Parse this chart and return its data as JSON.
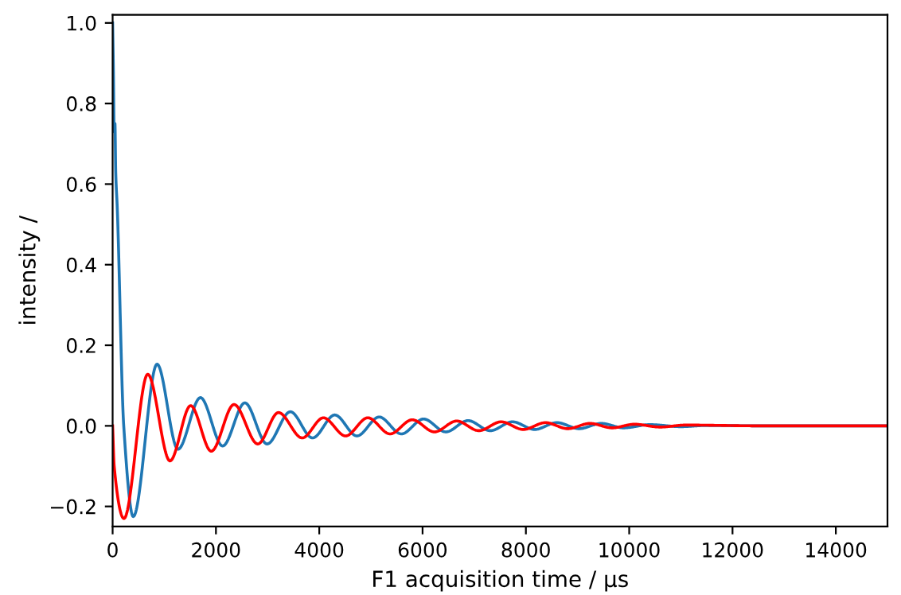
{
  "chart_data": {
    "type": "line",
    "xlabel": "F1 acquisition time / µs",
    "ylabel": "intensity /",
    "xlim": [
      0,
      15000
    ],
    "ylim": [
      -0.25,
      1.02
    ],
    "xticks": [
      0,
      2000,
      4000,
      6000,
      8000,
      10000,
      12000,
      14000
    ],
    "yticks": [
      {
        "value": -0.2,
        "label": "−0.2"
      },
      {
        "value": 0,
        "label": "0.0"
      },
      0.2,
      0.4,
      0.6,
      0.8,
      {
        "value": 1,
        "label": "1.0"
      }
    ],
    "grid": false,
    "legend": false,
    "series": [
      {
        "color": "#1f77b4",
        "x": [
          0,
          15,
          30,
          45,
          60,
          90,
          215,
          400,
          860,
          1265,
          1700,
          2130,
          2560,
          2990,
          3440,
          3870,
          4300,
          4730,
          5160,
          5590,
          6020,
          6450,
          6880,
          7310,
          7740,
          8170,
          8600,
          9030,
          9460,
          9890,
          10400,
          11000,
          11500,
          12500,
          15000
        ],
        "values": [
          1.0,
          0.88,
          0.73,
          0.75,
          0.63,
          0.54,
          0.0,
          -0.225,
          0.153,
          -0.058,
          0.07,
          -0.05,
          0.057,
          -0.045,
          0.035,
          -0.03,
          0.027,
          -0.025,
          0.022,
          -0.02,
          0.017,
          -0.015,
          0.013,
          -0.012,
          0.01,
          -0.009,
          0.008,
          -0.007,
          0.006,
          -0.005,
          0.003,
          -0.002,
          0.001,
          0.0,
          0.0
        ]
      },
      {
        "color": "#ff0000",
        "x": [
          0,
          30,
          220,
          680,
          1110,
          1510,
          1910,
          2350,
          2810,
          3210,
          3670,
          4080,
          4510,
          4940,
          5370,
          5800,
          6230,
          6660,
          7090,
          7520,
          7950,
          8380,
          8810,
          9240,
          9670,
          10100,
          10600,
          11100,
          12500,
          15000
        ],
        "values": [
          0.0,
          -0.1,
          -0.23,
          0.128,
          -0.087,
          0.05,
          -0.063,
          0.053,
          -0.045,
          0.033,
          -0.03,
          0.02,
          -0.025,
          0.02,
          -0.02,
          0.015,
          -0.015,
          0.012,
          -0.012,
          0.01,
          -0.009,
          0.008,
          -0.007,
          0.006,
          -0.005,
          0.004,
          -0.003,
          0.002,
          0.0,
          0.0
        ]
      }
    ]
  }
}
